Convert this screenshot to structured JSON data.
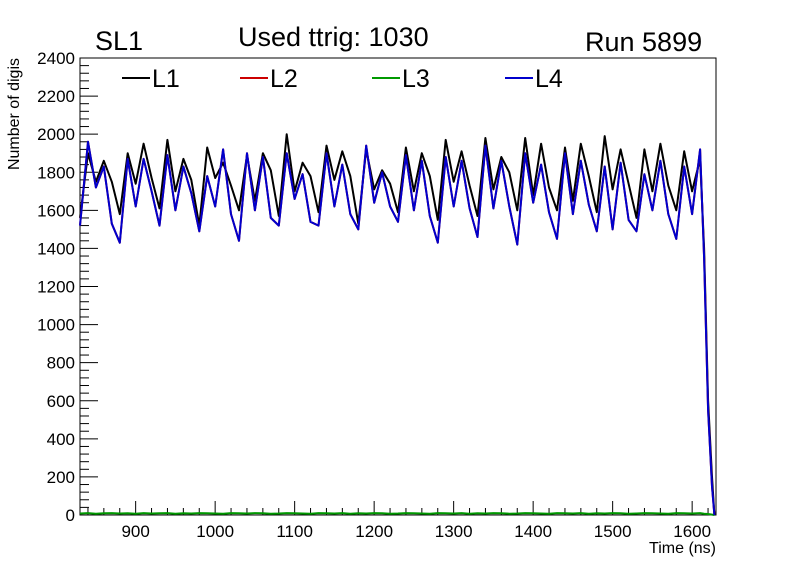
{
  "header": {
    "left": "SL1",
    "center": "Used ttrig: 1030",
    "right": "Run 5899"
  },
  "chart_data": {
    "type": "line",
    "title": "",
    "xlabel": "Time (ns)",
    "ylabel": "Number of digis",
    "xlim": [
      830,
      1630
    ],
    "ylim": [
      0,
      2400
    ],
    "xticks": [
      900,
      1000,
      1100,
      1200,
      1300,
      1400,
      1500,
      1600
    ],
    "yticks": [
      0,
      200,
      400,
      600,
      800,
      1000,
      1200,
      1400,
      1600,
      1800,
      2000,
      2200,
      2400
    ],
    "grid": false,
    "legend_position": "top",
    "colors": {
      "L1": "#000000",
      "L2": "#cc0000",
      "L3": "#009900",
      "L4": "#0000cc"
    },
    "x": [
      830,
      840,
      850,
      860,
      870,
      880,
      890,
      900,
      910,
      920,
      930,
      940,
      950,
      960,
      970,
      980,
      990,
      1000,
      1010,
      1020,
      1030,
      1040,
      1050,
      1060,
      1070,
      1080,
      1090,
      1100,
      1110,
      1120,
      1130,
      1140,
      1150,
      1160,
      1170,
      1180,
      1190,
      1200,
      1210,
      1220,
      1230,
      1240,
      1250,
      1260,
      1270,
      1280,
      1290,
      1300,
      1310,
      1320,
      1330,
      1340,
      1350,
      1360,
      1370,
      1380,
      1390,
      1400,
      1410,
      1420,
      1430,
      1440,
      1450,
      1460,
      1470,
      1480,
      1490,
      1500,
      1510,
      1520,
      1530,
      1540,
      1550,
      1560,
      1570,
      1580,
      1590,
      1600,
      1610,
      1615,
      1620,
      1625,
      1628
    ],
    "series": [
      {
        "name": "L1",
        "values": [
          1560,
          1900,
          1750,
          1860,
          1750,
          1580,
          1900,
          1740,
          1950,
          1770,
          1610,
          1970,
          1700,
          1870,
          1760,
          1520,
          1930,
          1770,
          1850,
          1730,
          1600,
          1890,
          1650,
          1900,
          1810,
          1570,
          2000,
          1700,
          1850,
          1780,
          1590,
          1940,
          1760,
          1910,
          1780,
          1530,
          1920,
          1710,
          1810,
          1740,
          1590,
          1930,
          1700,
          1900,
          1780,
          1550,
          1970,
          1750,
          1910,
          1730,
          1570,
          1980,
          1710,
          1880,
          1800,
          1600,
          1980,
          1680,
          1950,
          1720,
          1600,
          1930,
          1650,
          1950,
          1780,
          1590,
          1990,
          1710,
          1920,
          1740,
          1560,
          1920,
          1700,
          1950,
          1730,
          1600,
          1910,
          1700,
          1870,
          1400,
          600,
          200,
          0
        ]
      },
      {
        "name": "L2",
        "values": [
          1520,
          1960,
          1720,
          1830,
          1530,
          1430,
          1870,
          1620,
          1870,
          1700,
          1520,
          1890,
          1600,
          1830,
          1690,
          1490,
          1780,
          1620,
          1920,
          1580,
          1440,
          1900,
          1600,
          1880,
          1560,
          1520,
          1900,
          1660,
          1790,
          1540,
          1520,
          1900,
          1620,
          1840,
          1580,
          1500,
          1940,
          1640,
          1800,
          1620,
          1540,
          1890,
          1600,
          1860,
          1570,
          1430,
          1880,
          1620,
          1860,
          1610,
          1460,
          1940,
          1610,
          1860,
          1620,
          1420,
          1900,
          1640,
          1840,
          1590,
          1450,
          1900,
          1580,
          1860,
          1630,
          1490,
          1830,
          1500,
          1850,
          1550,
          1490,
          1790,
          1600,
          1860,
          1580,
          1450,
          1830,
          1580,
          1920,
          1350,
          550,
          150,
          0
        ]
      },
      {
        "name": "L3",
        "values": [
          8,
          10,
          7,
          9,
          10,
          8,
          9,
          7,
          10,
          8,
          9,
          10,
          7,
          9,
          8,
          10,
          9,
          8,
          7,
          10,
          9,
          8,
          10,
          9,
          7,
          8,
          10,
          9,
          8,
          7,
          10,
          9,
          8,
          10,
          7,
          9,
          8,
          10,
          9,
          7,
          8,
          10,
          9,
          8,
          7,
          10,
          9,
          8,
          10,
          7,
          9,
          8,
          10,
          9,
          7,
          8,
          10,
          9,
          8,
          7,
          10,
          9,
          8,
          10,
          7,
          9,
          8,
          10,
          9,
          7,
          8,
          10,
          9,
          8,
          7,
          10,
          9,
          8,
          10,
          7,
          5,
          2,
          0
        ]
      },
      {
        "name": "L4",
        "values": [
          1520,
          1960,
          1720,
          1830,
          1530,
          1430,
          1870,
          1620,
          1870,
          1700,
          1520,
          1890,
          1600,
          1830,
          1690,
          1490,
          1780,
          1620,
          1920,
          1580,
          1440,
          1900,
          1600,
          1880,
          1560,
          1520,
          1900,
          1660,
          1790,
          1540,
          1520,
          1900,
          1620,
          1840,
          1580,
          1500,
          1940,
          1640,
          1800,
          1620,
          1540,
          1890,
          1600,
          1860,
          1570,
          1430,
          1880,
          1620,
          1860,
          1610,
          1460,
          1940,
          1610,
          1860,
          1620,
          1420,
          1900,
          1640,
          1840,
          1590,
          1450,
          1900,
          1580,
          1860,
          1630,
          1490,
          1830,
          1500,
          1850,
          1550,
          1490,
          1790,
          1600,
          1860,
          1580,
          1450,
          1830,
          1580,
          1920,
          1350,
          550,
          150,
          0
        ]
      }
    ]
  }
}
